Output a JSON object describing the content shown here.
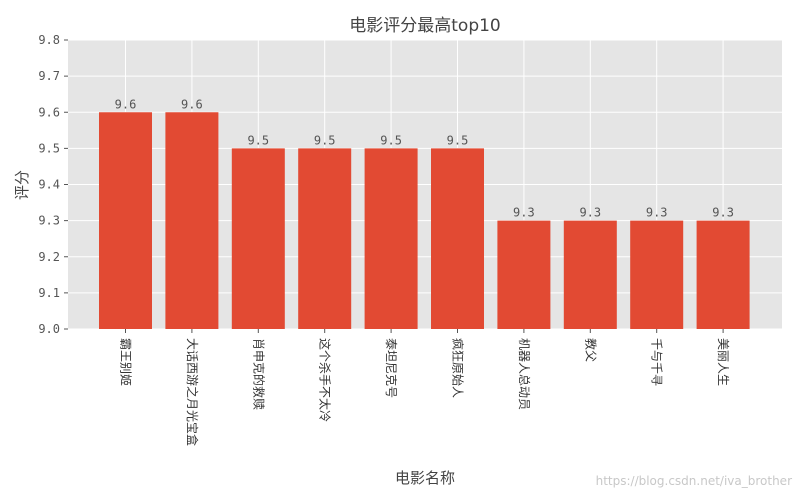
{
  "chart_data": {
    "type": "bar",
    "title": "电影评分最高top10",
    "xlabel": "电影名称",
    "ylabel": "评分",
    "categories": [
      "霸王别姬",
      "大话西游之月光宝盒",
      "肖申克的救赎",
      "这个杀手不太冷",
      "泰坦尼克号",
      "疯狂原始人",
      "机器人总动员",
      "教父",
      "千与千寻",
      "美丽人生"
    ],
    "values": [
      9.6,
      9.6,
      9.5,
      9.5,
      9.5,
      9.5,
      9.3,
      9.3,
      9.3,
      9.3
    ],
    "data_labels": [
      "9.6",
      "9.6",
      "9.5",
      "9.5",
      "9.5",
      "9.5",
      "9.3",
      "9.3",
      "9.3",
      "9.3"
    ],
    "yticks": [
      "9.0",
      "9.1",
      "9.2",
      "9.3",
      "9.4",
      "9.5",
      "9.6",
      "9.7",
      "9.8"
    ],
    "ylim": [
      9.0,
      9.8
    ],
    "grid": true,
    "bar_color": "#E24A33",
    "plot_bg": "#E5E5E5"
  },
  "watermark": "https://blog.csdn.net/iva_brother"
}
